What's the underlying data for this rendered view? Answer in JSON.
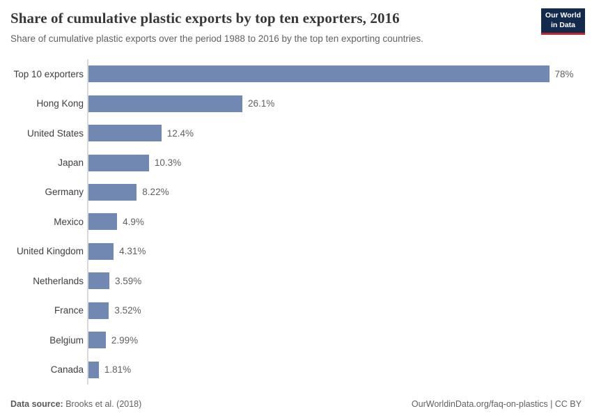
{
  "header": {
    "title": "Share of cumulative plastic exports by top ten exporters, 2016",
    "subtitle": "Share of cumulative plastic exports over the period 1988 to 2016 by the top ten exporting countries.",
    "logo": {
      "line1": "Our World",
      "line2": "in Data"
    }
  },
  "chart_data": {
    "type": "bar",
    "orientation": "horizontal",
    "title": "Share of cumulative plastic exports by top ten exporters, 2016",
    "categories": [
      "Top 10 exporters",
      "Hong Kong",
      "United States",
      "Japan",
      "Germany",
      "Mexico",
      "United Kingdom",
      "Netherlands",
      "France",
      "Belgium",
      "Canada"
    ],
    "values": [
      78,
      26.1,
      12.4,
      10.3,
      8.22,
      4.9,
      4.31,
      3.59,
      3.52,
      2.99,
      1.81
    ],
    "value_labels": [
      "78%",
      "26.1%",
      "12.4%",
      "10.3%",
      "8.22%",
      "4.9%",
      "4.31%",
      "3.59%",
      "3.52%",
      "2.99%",
      "1.81%"
    ],
    "unit": "%",
    "xlim": [
      0,
      78
    ],
    "grid": false,
    "legend": false,
    "bar_color": "#7189b2",
    "axis_color": "#dadada"
  },
  "footer": {
    "datasource_label": "Data source:",
    "datasource_value": " Brooks et al. (2018)",
    "right_text": "OurWorldinData.org/faq-on-plastics | CC BY"
  },
  "colors": {
    "bar": "#7189b2",
    "logo_navy": "#132a4d",
    "logo_red": "#c0282d",
    "title_text": "#373737",
    "muted_text": "#616161"
  }
}
